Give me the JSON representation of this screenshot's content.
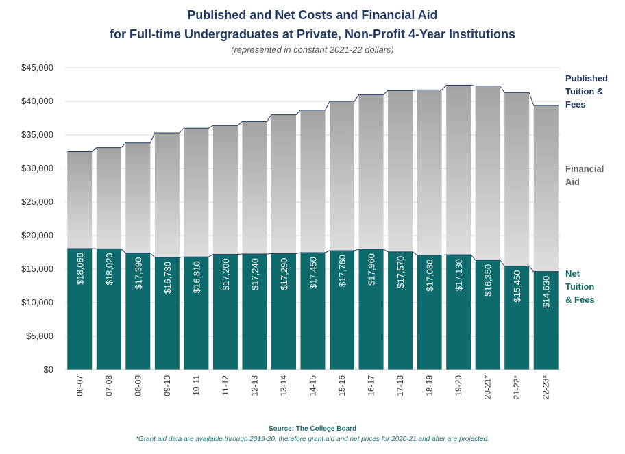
{
  "chart_data": {
    "type": "bar",
    "title": "Published and Net Costs and Financial Aid",
    "title2": "for Full-time Undergraduates at Private, Non-Profit 4-Year Institutions",
    "subtitle": "(represented in constant 2021-22 dollars)",
    "categories": [
      "06-07",
      "07-08",
      "08-09",
      "09-10",
      "10-11",
      "11-12",
      "12-13",
      "13-14",
      "14-15",
      "15-16",
      "16-17",
      "17-18",
      "18-19",
      "19-20",
      "20-21*",
      "21-22*",
      "22-23*"
    ],
    "series": [
      {
        "name": "Net Tuition & Fees",
        "values": [
          18060,
          18020,
          17390,
          16730,
          16810,
          17200,
          17240,
          17290,
          17450,
          17760,
          17960,
          17570,
          17080,
          17130,
          16350,
          15460,
          14630
        ]
      },
      {
        "name": "Published Tuition & Fees",
        "values": [
          32500,
          33100,
          33800,
          35300,
          36000,
          36400,
          37000,
          38000,
          38700,
          40000,
          41000,
          41600,
          41700,
          42400,
          42300,
          41300,
          39400
        ]
      }
    ],
    "bar_labels": [
      "$18,060",
      "$18,020",
      "$17,390",
      "$16,730",
      "$16,810",
      "$17,200",
      "$17,240",
      "$17,290",
      "$17,450",
      "$17,760",
      "$17,960",
      "$17,570",
      "$17,080",
      "$17,130",
      "$16,350",
      "$15,460",
      "$14,630"
    ],
    "yticks": [
      "$0",
      "$5,000",
      "$10,000",
      "$15,000",
      "$20,000",
      "$25,000",
      "$30,000",
      "$35,000",
      "$40,000",
      "$45,000"
    ],
    "ylim": [
      0,
      45000
    ],
    "grid": true,
    "legend": {
      "published": [
        "Published",
        "Tuition &",
        "Fees"
      ],
      "aid": [
        "Financial",
        "Aid"
      ],
      "net": [
        "Net",
        "Tuition",
        "& Fees"
      ]
    },
    "colors": {
      "net": "#0f6b6b",
      "aid_top": "#a6a6a6",
      "aid_bottom": "#d9d9d9",
      "line": "#1f3864",
      "grid": "#d9d9d9"
    },
    "source": "Source: The College Board",
    "footnote": "*Grant aid data are available through 2019-20, therefore grant aid and net prices for 2020-21 and after are projected."
  }
}
